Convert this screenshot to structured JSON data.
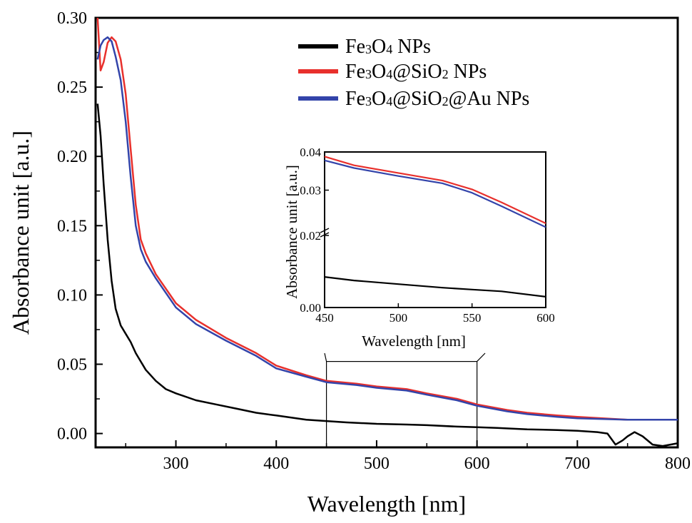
{
  "chart_data": {
    "type": "line",
    "xlabel": "Wavelength [nm]",
    "ylabel": "Absorbance unit [a.u.]",
    "xlim": [
      220,
      800
    ],
    "ylim": [
      -0.01,
      0.3
    ],
    "x_ticks": [
      "300",
      "400",
      "500",
      "600",
      "700",
      "800"
    ],
    "y_ticks": [
      "0.00",
      "0.05",
      "0.10",
      "0.15",
      "0.20",
      "0.25",
      "0.30"
    ],
    "grid": false,
    "legend_position": "top-right",
    "legend": {
      "fe3o4": {
        "base": "Fe",
        "s1": "3",
        "mid1": "O",
        "s2": "4",
        "tail": " NPs"
      },
      "fe3o4_sio2": {
        "base": "Fe",
        "s1": "3",
        "mid1": "O",
        "s2": "4",
        "mid2": "@SiO",
        "s3": "2",
        "tail": " NPs"
      },
      "fe3o4_sio2_au": {
        "base": "Fe",
        "s1": "3",
        "mid1": "O",
        "s2": "4",
        "mid2": "@SiO",
        "s3": "2",
        "tail": "@Au NPs"
      }
    },
    "series": [
      {
        "name": "Fe3O4 NPs",
        "color": "#000000",
        "x": [
          222,
          225,
          228,
          232,
          236,
          240,
          245,
          250,
          255,
          260,
          265,
          270,
          280,
          290,
          300,
          320,
          340,
          360,
          380,
          400,
          430,
          450,
          470,
          500,
          530,
          550,
          580,
          600,
          620,
          650,
          680,
          700,
          720,
          730,
          738,
          745,
          750,
          757,
          765,
          775,
          785,
          800
        ],
        "y": [
          0.238,
          0.215,
          0.18,
          0.14,
          0.11,
          0.09,
          0.078,
          0.072,
          0.066,
          0.058,
          0.052,
          0.046,
          0.038,
          0.032,
          0.029,
          0.024,
          0.021,
          0.018,
          0.015,
          0.013,
          0.01,
          0.009,
          0.008,
          0.007,
          0.0065,
          0.006,
          0.005,
          0.0045,
          0.004,
          0.003,
          0.0025,
          0.002,
          0.001,
          0.0,
          -0.008,
          -0.005,
          -0.002,
          0.001,
          -0.002,
          -0.008,
          -0.009,
          -0.007
        ]
      },
      {
        "name": "Fe3O4@SiO2 NPs",
        "color": "#e8302c",
        "x": [
          222,
          225,
          228,
          232,
          236,
          240,
          245,
          250,
          255,
          260,
          265,
          270,
          280,
          300,
          320,
          350,
          380,
          400,
          430,
          450,
          480,
          500,
          530,
          550,
          580,
          600,
          630,
          650,
          680,
          700,
          750,
          800
        ],
        "y": [
          0.3,
          0.262,
          0.268,
          0.282,
          0.286,
          0.283,
          0.27,
          0.245,
          0.205,
          0.165,
          0.14,
          0.13,
          0.115,
          0.094,
          0.082,
          0.069,
          0.058,
          0.049,
          0.042,
          0.038,
          0.036,
          0.034,
          0.032,
          0.029,
          0.025,
          0.021,
          0.017,
          0.015,
          0.013,
          0.012,
          0.01,
          0.01
        ]
      },
      {
        "name": "Fe3O4@SiO2@Au NPs",
        "color": "#3344aa",
        "x": [
          222,
          225,
          228,
          232,
          236,
          240,
          245,
          250,
          255,
          260,
          265,
          270,
          280,
          300,
          320,
          350,
          380,
          400,
          430,
          450,
          480,
          500,
          530,
          550,
          580,
          600,
          630,
          650,
          680,
          700,
          750,
          800
        ],
        "y": [
          0.27,
          0.28,
          0.284,
          0.286,
          0.283,
          0.272,
          0.255,
          0.225,
          0.185,
          0.15,
          0.133,
          0.124,
          0.112,
          0.091,
          0.079,
          0.067,
          0.056,
          0.047,
          0.041,
          0.037,
          0.035,
          0.033,
          0.031,
          0.028,
          0.024,
          0.02,
          0.016,
          0.014,
          0.012,
          0.011,
          0.01,
          0.01
        ]
      }
    ],
    "inset": {
      "type": "line",
      "xlabel": "Wavelength [nm]",
      "ylabel": "Absorbance unit [a.u.]",
      "x_ticks": [
        "450",
        "500",
        "550",
        "600"
      ],
      "y_ticks_lower": [
        "0.00"
      ],
      "y_ticks_upper": [
        "0.02",
        "0.03",
        "0.04"
      ],
      "broken_y_axis": true,
      "xlim": [
        450,
        600
      ],
      "zoom_region_x": [
        450,
        600
      ],
      "series": [
        {
          "name": "Fe3O4 NPs",
          "color": "#000000",
          "x": [
            450,
            470,
            500,
            530,
            550,
            570,
            600
          ],
          "y": [
            0.0085,
            0.0075,
            0.0065,
            0.0055,
            0.005,
            0.0045,
            0.003
          ]
        },
        {
          "name": "Fe3O4@SiO2 NPs",
          "color": "#e8302c",
          "x": [
            450,
            470,
            500,
            530,
            550,
            570,
            600
          ],
          "y": [
            0.0388,
            0.0365,
            0.0345,
            0.0325,
            0.0302,
            0.0268,
            0.0213
          ]
        },
        {
          "name": "Fe3O4@SiO2@Au NPs",
          "color": "#3344aa",
          "x": [
            450,
            470,
            500,
            530,
            550,
            570,
            600
          ],
          "y": [
            0.0378,
            0.0358,
            0.0337,
            0.0318,
            0.0293,
            0.0258,
            0.0203
          ]
        }
      ]
    }
  }
}
